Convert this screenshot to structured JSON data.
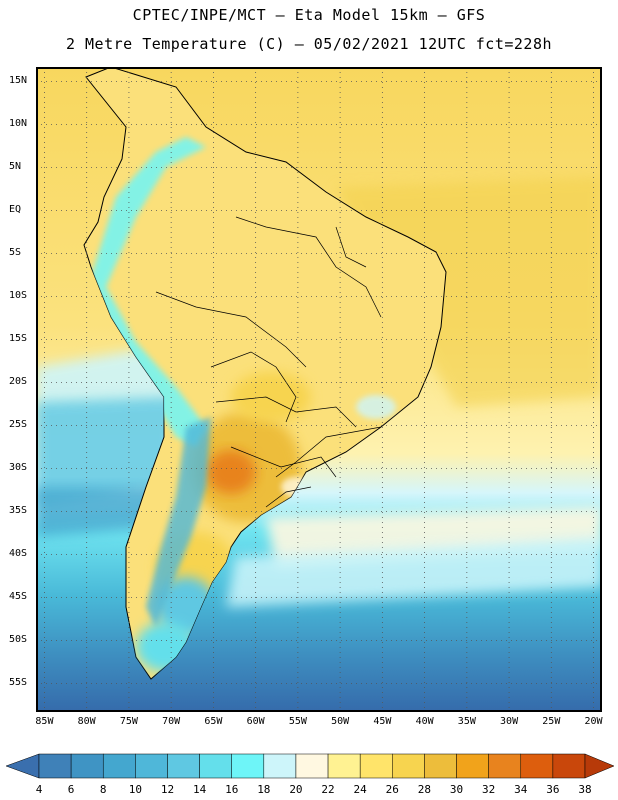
{
  "header": {
    "line1": "CPTEC/INPE/MCT –  Eta Model 15km – GFS",
    "line2": "2 Metre Temperature (C) – 05/02/2021 12UTC fct=228h"
  },
  "map": {
    "lat_labels": [
      "15N",
      "10N",
      "5N",
      "EQ",
      "5S",
      "10S",
      "15S",
      "20S",
      "25S",
      "30S",
      "35S",
      "40S",
      "45S",
      "50S",
      "55S"
    ],
    "lon_labels": [
      "85W",
      "80W",
      "75W",
      "70W",
      "65W",
      "60W",
      "55W",
      "50W",
      "45W",
      "40W",
      "35W",
      "30W",
      "25W",
      "20W"
    ],
    "lon_range": [
      -86,
      -19
    ],
    "lat_range": [
      16.7,
      -58.3
    ]
  },
  "colorbar": {
    "labels": [
      "4",
      "6",
      "8",
      "10",
      "12",
      "14",
      "16",
      "18",
      "20",
      "22",
      "24",
      "26",
      "28",
      "30",
      "32",
      "34",
      "36",
      "38"
    ],
    "colors": [
      "#3a6fae",
      "#3f81b8",
      "#3f94c4",
      "#44a7cf",
      "#4fb7d9",
      "#5fc8e2",
      "#64dfeb",
      "#6ef5f8",
      "#cdf5fa",
      "#fff8e1",
      "#fff292",
      "#ffe46a",
      "#f7d44f",
      "#edbd3b",
      "#f1a31b",
      "#e8831e",
      "#dd5e0d",
      "#c9470b",
      "#b73a09"
    ]
  }
}
